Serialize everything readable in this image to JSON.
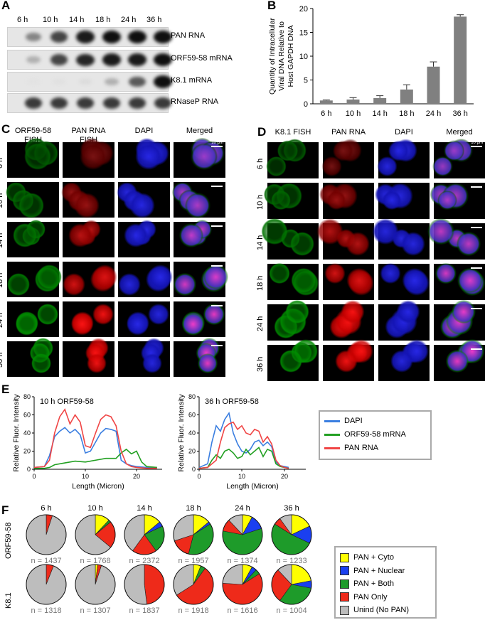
{
  "panels": {
    "A": "A",
    "B": "B",
    "C": "C",
    "D": "D",
    "E": "E",
    "F": "F"
  },
  "panelA": {
    "timepoints": [
      "6 h",
      "10 h",
      "14 h",
      "18 h",
      "24 h",
      "36 h"
    ],
    "rows": [
      "PAN RNA",
      "ORF59-58 mRNA",
      "K8.1 mRNA",
      "RNaseP RNA"
    ],
    "intensity": [
      [
        0.45,
        0.75,
        0.95,
        1.0,
        1.0,
        1.0
      ],
      [
        0.25,
        0.75,
        0.9,
        0.95,
        0.95,
        1.0
      ],
      [
        0.02,
        0.03,
        0.05,
        0.25,
        0.65,
        1.0
      ],
      [
        0.8,
        0.8,
        0.8,
        0.8,
        0.8,
        0.8
      ]
    ]
  },
  "panelB": {
    "chart_data": {
      "type": "bar",
      "categories": [
        "6 h",
        "10 h",
        "14 h",
        "18 h",
        "24 h",
        "36 h"
      ],
      "values": [
        0.7,
        0.9,
        1.2,
        3.0,
        7.8,
        18.3
      ],
      "errors": [
        0.1,
        0.4,
        0.5,
        1.0,
        1.0,
        0.4
      ],
      "ylabel": "Quantity of Intracellular Viral DNA Relative to Host GAPDH DNA",
      "ylabel_lines": [
        "Quantity of Intracellular",
        "Viral DNA Relative to",
        "Host GAPDH DNA"
      ],
      "ylim": [
        0,
        20
      ],
      "yticks": [
        0,
        5,
        10,
        15,
        20
      ],
      "color": "#808080"
    }
  },
  "panelC": {
    "headers": [
      "ORF59-58\nFISH",
      "PAN RNA FISH",
      "DAPI",
      "Merged"
    ],
    "header_lines": [
      [
        "ORF59-58",
        "FISH"
      ],
      [
        "PAN RNA FISH"
      ],
      [
        "DAPI"
      ],
      [
        "Merged"
      ]
    ],
    "rows": [
      "6 h",
      "10 h",
      "14 h",
      "18 h",
      "24 h",
      "36 h"
    ],
    "scale": "10 μm"
  },
  "panelD": {
    "headers": [
      "K8.1 FISH",
      "PAN RNA",
      "DAPI",
      "Merged"
    ],
    "rows": [
      "6 h",
      "10 h",
      "14 h",
      "18 h",
      "24 h",
      "36 h"
    ],
    "scale": "10 μm"
  },
  "panelE": {
    "chart_data": [
      {
        "type": "line",
        "title": "10 h ORF59-58",
        "xlabel": "Length (Micron)",
        "ylabel": "Relative Fluor. Intensity",
        "xlim": [
          0,
          25
        ],
        "ylim": [
          0,
          80
        ],
        "xticks": [
          0,
          10,
          20
        ],
        "yticks": [
          0,
          20,
          40,
          60,
          80
        ],
        "series": [
          {
            "name": "DAPI",
            "color": "#3a7ee0",
            "x": [
              0,
              2,
              3,
              4,
              5,
              6,
              7,
              8,
              9,
              10,
              11,
              12,
              13,
              14,
              15,
              16,
              17,
              18,
              19,
              20,
              22,
              24
            ],
            "y": [
              2,
              3,
              15,
              36,
              42,
              46,
              40,
              44,
              38,
              18,
              20,
              30,
              40,
              45,
              44,
              42,
              10,
              6,
              4,
              3,
              2,
              2
            ]
          },
          {
            "name": "ORF59-58 mRNA",
            "color": "#22a022",
            "x": [
              0,
              2,
              3,
              4,
              6,
              8,
              10,
              12,
              14,
              16,
              17,
              18,
              19,
              20,
              21,
              22,
              24
            ],
            "y": [
              1,
              1,
              2,
              5,
              7,
              9,
              8,
              10,
              12,
              12,
              18,
              22,
              17,
              20,
              8,
              3,
              2
            ]
          },
          {
            "name": "PAN RNA",
            "color": "#f04545",
            "x": [
              0,
              2,
              3,
              4,
              5,
              6,
              7,
              8,
              9,
              10,
              11,
              12,
              13,
              14,
              15,
              16,
              17,
              18,
              19,
              20,
              22,
              24
            ],
            "y": [
              2,
              3,
              10,
              40,
              58,
              66,
              50,
              60,
              52,
              26,
              24,
              40,
              55,
              60,
              58,
              48,
              20,
              6,
              3,
              2,
              1,
              1
            ]
          }
        ]
      },
      {
        "type": "line",
        "title": "36 h ORF59-58",
        "xlabel": "Length (Micron)",
        "ylabel": "Relative Fluor. Intensity",
        "xlim": [
          0,
          25
        ],
        "ylim": [
          0,
          80
        ],
        "xticks": [
          0,
          10,
          20
        ],
        "yticks": [
          0,
          20,
          40,
          60,
          80
        ],
        "series": [
          {
            "name": "DAPI",
            "color": "#3a7ee0",
            "x": [
              0,
              2,
              3,
              4,
              5,
              6,
              7,
              8,
              9,
              10,
              11,
              12,
              13,
              14,
              15,
              16,
              17,
              18,
              19,
              20,
              21
            ],
            "y": [
              2,
              6,
              30,
              48,
              42,
              55,
              62,
              40,
              28,
              20,
              18,
              22,
              30,
              32,
              26,
              30,
              25,
              8,
              4,
              3,
              2
            ]
          },
          {
            "name": "ORF59-58 mRNA",
            "color": "#22a022",
            "x": [
              0,
              2,
              3,
              4,
              5,
              6,
              7,
              8,
              9,
              10,
              11,
              12,
              13,
              14,
              15,
              16,
              17,
              18,
              19,
              20,
              21
            ],
            "y": [
              1,
              2,
              10,
              16,
              12,
              20,
              22,
              18,
              12,
              14,
              22,
              16,
              20,
              24,
              14,
              22,
              20,
              6,
              3,
              2,
              1
            ]
          },
          {
            "name": "PAN RNA",
            "color": "#f04545",
            "x": [
              0,
              2,
              3,
              4,
              5,
              6,
              7,
              8,
              9,
              10,
              11,
              12,
              13,
              14,
              15,
              16,
              17,
              18,
              19,
              20,
              21
            ],
            "y": [
              1,
              2,
              6,
              10,
              30,
              46,
              50,
              52,
              44,
              48,
              40,
              38,
              44,
              42,
              30,
              36,
              28,
              10,
              4,
              2,
              1
            ]
          }
        ]
      }
    ],
    "legend": [
      "DAPI",
      "ORF59-58 mRNA",
      "PAN RNA"
    ]
  },
  "panelF": {
    "timepoints": [
      "6 h",
      "10 h",
      "14 h",
      "18 h",
      "24 h",
      "36 h"
    ],
    "row_labels": [
      "ORF59-58",
      "K8.1"
    ],
    "categories": [
      "PAN + Cyto",
      "PAN + Nuclear",
      "PAN + Both",
      "PAN Only",
      "Unind (No PAN)"
    ],
    "colors": [
      "#ffff00",
      "#1a3ff0",
      "#1e9b2a",
      "#ee2a1a",
      "#bdbdbd"
    ],
    "chart_data": {
      "type": "pie",
      "rows": [
        {
          "label": "ORF59-58",
          "n": [
            "n = 1437",
            "n = 1768",
            "n = 2372",
            "n = 1957",
            "n = 1374",
            "n = 1233"
          ],
          "slices": [
            [
              0,
              0,
              0,
              5,
              95
            ],
            [
              12,
              0,
              2,
              22,
              64
            ],
            [
              14,
              4,
              22,
              20,
              40
            ],
            [
              14,
              2,
              38,
              16,
              30
            ],
            [
              8,
              12,
              58,
              10,
              12
            ],
            [
              18,
              14,
              52,
              6,
              10
            ]
          ]
        },
        {
          "label": "K8.1",
          "n": [
            "n = 1318",
            "n = 1307",
            "n = 1837",
            "n = 1918",
            "n = 1616",
            "n = 1004"
          ],
          "slices": [
            [
              0,
              0,
              0,
              6,
              94
            ],
            [
              2,
              0,
              0,
              3,
              95
            ],
            [
              0,
              0,
              0,
              48,
              52
            ],
            [
              6,
              0,
              4,
              56,
              34
            ],
            [
              8,
              4,
              4,
              60,
              24
            ],
            [
              22,
              6,
              32,
              28,
              12
            ]
          ]
        }
      ]
    }
  }
}
